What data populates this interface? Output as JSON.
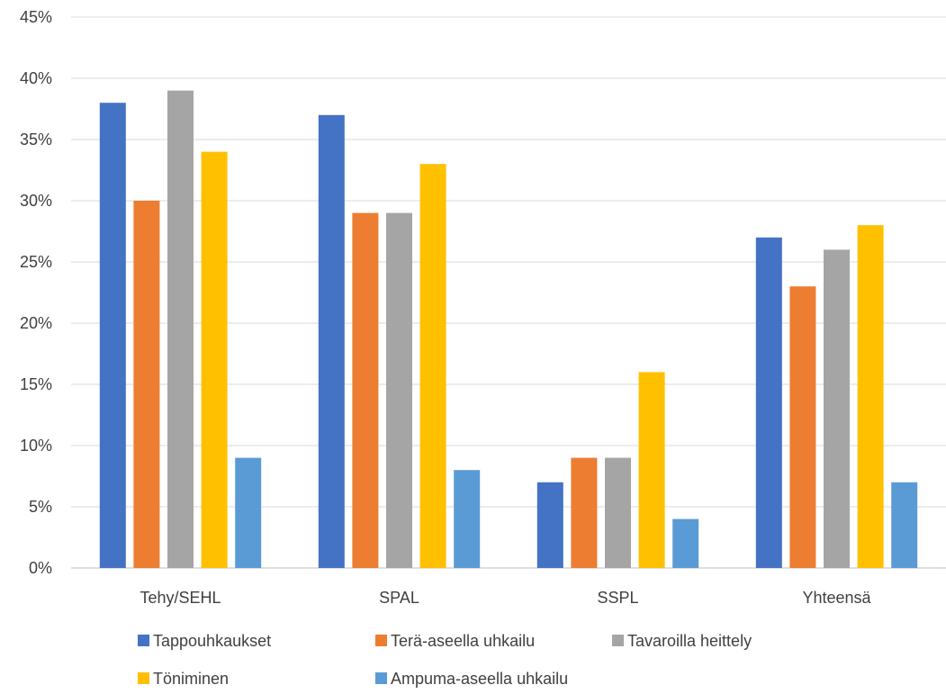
{
  "chart_data": {
    "type": "bar",
    "title": "",
    "xlabel": "",
    "ylabel": "",
    "categories": [
      "Tehy/SEHL",
      "SPAL",
      "SSPL",
      "Yhteensä"
    ],
    "ylim": [
      0,
      45
    ],
    "ytick_step": 5,
    "y_format": "percent",
    "grid": true,
    "legend_position": "bottom",
    "series": [
      {
        "name": "Tappouhkaukset",
        "color": "#4472C4",
        "values": [
          38,
          37,
          7,
          27
        ]
      },
      {
        "name": "Terä-aseella uhkailu",
        "color": "#ED7D31",
        "values": [
          30,
          29,
          9,
          23
        ]
      },
      {
        "name": "Tavaroilla heittely",
        "color": "#A5A5A5",
        "values": [
          39,
          29,
          9,
          26
        ]
      },
      {
        "name": "Töniminen",
        "color": "#FFC000",
        "values": [
          34,
          33,
          16,
          28
        ]
      },
      {
        "name": "Ampuma-aseella uhkailu",
        "color": "#5B9BD5",
        "values": [
          9,
          8,
          4,
          7
        ]
      }
    ]
  }
}
